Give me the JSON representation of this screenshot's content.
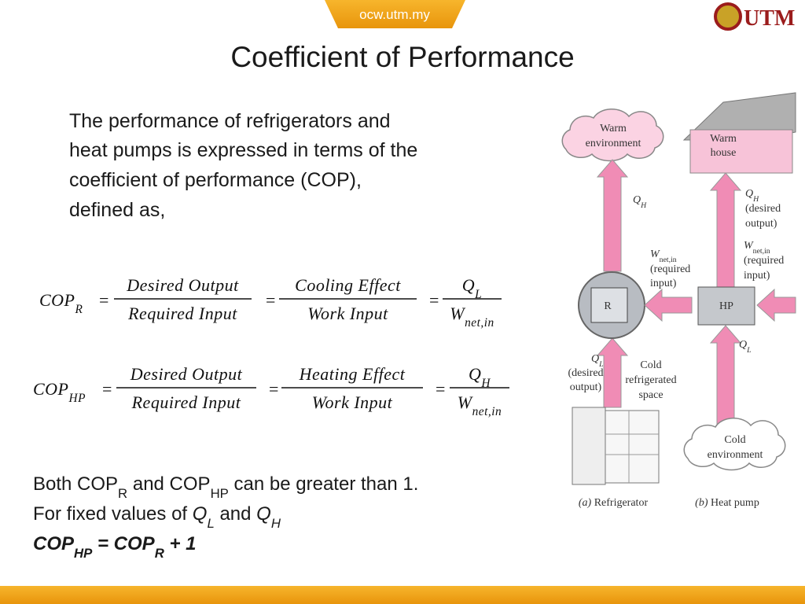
{
  "header": {
    "site": "ocw.utm.my",
    "logo": "UTM"
  },
  "title": "Coefficient of Performance",
  "intro": [
    "The performance of refrigerators and",
    "heat pumps is expressed in terms of the",
    "coefficient of performance (COP),",
    "defined as,"
  ],
  "equals": "=",
  "equations": [
    {
      "lhs": [
        "COP",
        "R"
      ],
      "fractions": [
        {
          "numerator": [
            "Desired Output"
          ],
          "denominator": [
            "Required Input"
          ]
        },
        {
          "numerator": [
            "Cooling Effect"
          ],
          "denominator": [
            "Work Input"
          ]
        },
        {
          "numerator": [
            "Q",
            "L"
          ],
          "denominator": [
            "W",
            "net,in"
          ]
        }
      ]
    },
    {
      "lhs": [
        "COP",
        "HP"
      ],
      "fractions": [
        {
          "numerator": [
            "Desired Output"
          ],
          "denominator": [
            "Required Input"
          ]
        },
        {
          "numerator": [
            "Heating Effect"
          ],
          "denominator": [
            "Work Input"
          ]
        },
        {
          "numerator": [
            "Q",
            "H"
          ],
          "denominator": [
            "W",
            "net,in"
          ]
        }
      ]
    }
  ],
  "notes": [
    [
      "Both COP",
      "R",
      " and COP",
      "HP",
      " can be greater than 1."
    ],
    [
      "For fixed values of ",
      "Q",
      "L",
      " and ",
      "Q",
      "H"
    ],
    [
      "COP",
      "HP",
      " = COP",
      "R",
      " + 1"
    ]
  ],
  "diagram": {
    "refrigerator": {
      "warm": [
        "Warm",
        "environment"
      ],
      "q_h": [
        "Q",
        "H"
      ],
      "work": [
        "W",
        "net,in"
      ],
      "work_note": [
        "(required",
        "input)"
      ],
      "device": "R",
      "q_l": [
        "Q",
        "L"
      ],
      "q_l_note": [
        "(desired",
        "output)"
      ],
      "space": [
        "Cold",
        "refrigerated",
        "space"
      ],
      "caption": [
        "(a)",
        " Refrigerator"
      ]
    },
    "heat_pump": {
      "house": [
        "Warm",
        "house"
      ],
      "q_h": [
        "Q",
        "H"
      ],
      "q_h_note": [
        "(desired",
        "output)"
      ],
      "work": [
        "W",
        "net,in"
      ],
      "work_note": [
        "(required",
        "input)"
      ],
      "device": "HP",
      "q_l": [
        "Q",
        "L"
      ],
      "cold": [
        "Cold",
        "environment"
      ],
      "caption": [
        "(b)",
        " Heat pump"
      ]
    }
  }
}
